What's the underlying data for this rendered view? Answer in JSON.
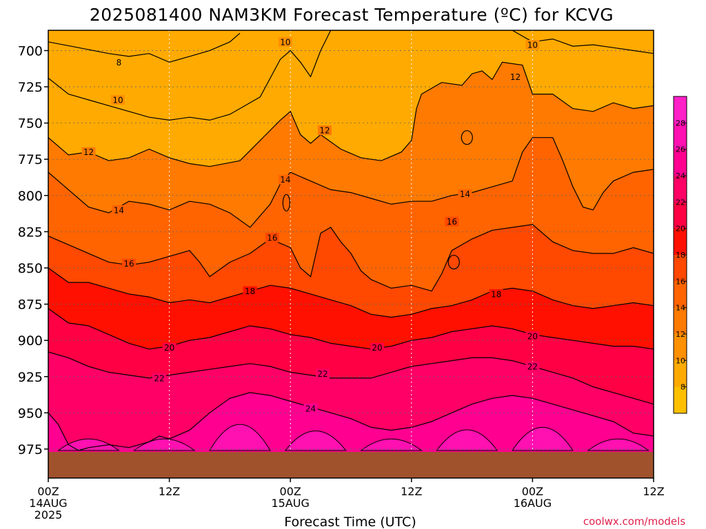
{
  "chart_data": {
    "type": "heatmap",
    "title": "2025081400 NAM3KM Forecast Temperature (ºC) for KCVG",
    "xlabel": "Forecast Time (UTC)",
    "ylabel": "",
    "credit": "coolwx.com/models",
    "x_ticks": [
      {
        "hour": 0,
        "lines": [
          "00Z",
          "14AUG",
          "2025"
        ]
      },
      {
        "hour": 12,
        "lines": [
          "12Z"
        ]
      },
      {
        "hour": 24,
        "lines": [
          "00Z",
          "15AUG"
        ]
      },
      {
        "hour": 36,
        "lines": [
          "12Z"
        ]
      },
      {
        "hour": 48,
        "lines": [
          "00Z",
          "16AUG"
        ]
      },
      {
        "hour": 60,
        "lines": [
          "12Z"
        ]
      }
    ],
    "xlim_hours": [
      0,
      60
    ],
    "y_ticks": [
      700,
      725,
      750,
      775,
      800,
      825,
      850,
      875,
      900,
      925,
      950,
      975
    ],
    "ylim_hpa": [
      686,
      995
    ],
    "ground_level_hpa": 977,
    "colorbar_ticks": [
      8,
      10,
      12,
      14,
      16,
      18,
      20,
      22,
      24,
      26,
      28
    ],
    "colorbar_levels": [
      {
        "min": 6,
        "color": "#ffc000"
      },
      {
        "min": 8,
        "color": "#ffaa00"
      },
      {
        "min": 10,
        "color": "#ff9000"
      },
      {
        "min": 12,
        "color": "#ff7a00"
      },
      {
        "min": 14,
        "color": "#ff6400"
      },
      {
        "min": 16,
        "color": "#ff4800"
      },
      {
        "min": 18,
        "color": "#ff1000"
      },
      {
        "min": 20,
        "color": "#ff0044"
      },
      {
        "min": 22,
        "color": "#ff0066"
      },
      {
        "min": 24,
        "color": "#ff0090"
      },
      {
        "min": 26,
        "color": "#ff10b0"
      },
      {
        "min": 28,
        "color": "#ff20c8"
      }
    ],
    "isotherms": [
      {
        "value": 8,
        "pressure_by_hour": [
          [
            0,
            694
          ],
          [
            3,
            698
          ],
          [
            6,
            702
          ],
          [
            8,
            704
          ],
          [
            10,
            702
          ],
          [
            12,
            708
          ],
          [
            14,
            704
          ],
          [
            16,
            700
          ],
          [
            18,
            694
          ],
          [
            19,
            688
          ]
        ]
      },
      {
        "value": 10,
        "pressure_by_hour": [
          [
            0,
            719
          ],
          [
            2,
            730
          ],
          [
            4,
            734
          ],
          [
            6,
            738
          ],
          [
            8,
            742
          ],
          [
            10,
            746
          ],
          [
            12,
            748
          ],
          [
            14,
            746
          ],
          [
            16,
            748
          ],
          [
            18,
            744
          ],
          [
            21,
            732
          ],
          [
            23,
            706
          ],
          [
            24,
            700
          ],
          [
            25,
            708
          ],
          [
            26,
            718
          ],
          [
            27,
            700
          ],
          [
            28,
            686
          ]
        ]
      },
      {
        "value": 10,
        "pressure_by_hour": [
          [
            46,
            686
          ],
          [
            48,
            694
          ],
          [
            50,
            692
          ],
          [
            52,
            697
          ],
          [
            54,
            696
          ],
          [
            56,
            698
          ],
          [
            58,
            700
          ],
          [
            60,
            702
          ]
        ]
      },
      {
        "value": 12,
        "pressure_by_hour": [
          [
            0,
            760
          ],
          [
            2,
            772
          ],
          [
            4,
            770
          ],
          [
            6,
            776
          ],
          [
            8,
            774
          ],
          [
            10,
            768
          ],
          [
            12,
            774
          ],
          [
            14,
            778
          ],
          [
            16,
            780
          ],
          [
            19,
            776
          ],
          [
            21,
            762
          ],
          [
            23,
            748
          ],
          [
            24,
            742
          ],
          [
            25,
            758
          ],
          [
            26,
            764
          ],
          [
            27,
            758
          ],
          [
            29,
            768
          ],
          [
            31,
            774
          ],
          [
            33,
            776
          ],
          [
            35,
            770
          ],
          [
            36,
            762
          ],
          [
            36.5,
            740
          ],
          [
            37,
            730
          ],
          [
            39,
            722
          ],
          [
            41,
            724
          ],
          [
            42,
            716
          ],
          [
            43,
            714
          ],
          [
            44,
            720
          ],
          [
            45,
            708
          ],
          [
            47,
            710
          ],
          [
            48,
            730
          ],
          [
            50,
            730
          ],
          [
            52,
            740
          ],
          [
            54,
            742
          ],
          [
            56,
            736
          ],
          [
            58,
            740
          ],
          [
            60,
            738
          ]
        ]
      },
      {
        "value": 14,
        "pressure_by_hour": [
          [
            0,
            784
          ],
          [
            2,
            796
          ],
          [
            4,
            808
          ],
          [
            6,
            812
          ],
          [
            8,
            804
          ],
          [
            10,
            806
          ],
          [
            12,
            810
          ],
          [
            14,
            804
          ],
          [
            16,
            806
          ],
          [
            18,
            812
          ],
          [
            20,
            822
          ],
          [
            22,
            806
          ],
          [
            23,
            792
          ],
          [
            24,
            784
          ],
          [
            26,
            790
          ],
          [
            28,
            796
          ],
          [
            30,
            798
          ],
          [
            32,
            802
          ],
          [
            34,
            806
          ],
          [
            36,
            804
          ],
          [
            38,
            804
          ],
          [
            40,
            800
          ],
          [
            42,
            798
          ],
          [
            44,
            794
          ],
          [
            46,
            790
          ],
          [
            47,
            770
          ],
          [
            48,
            760
          ],
          [
            50,
            760
          ],
          [
            51,
            776
          ],
          [
            52,
            794
          ],
          [
            53,
            808
          ],
          [
            54,
            810
          ],
          [
            55,
            798
          ],
          [
            56,
            790
          ],
          [
            58,
            784
          ],
          [
            60,
            782
          ]
        ]
      },
      {
        "value": 16,
        "pressure_by_hour": [
          [
            0,
            828
          ],
          [
            2,
            834
          ],
          [
            4,
            840
          ],
          [
            6,
            846
          ],
          [
            8,
            848
          ],
          [
            10,
            846
          ],
          [
            12,
            842
          ],
          [
            14,
            838
          ],
          [
            15,
            846
          ],
          [
            16,
            856
          ],
          [
            18,
            846
          ],
          [
            20,
            840
          ],
          [
            22,
            830
          ],
          [
            24,
            836
          ],
          [
            25,
            850
          ],
          [
            26,
            856
          ],
          [
            27,
            826
          ],
          [
            28,
            822
          ],
          [
            29,
            832
          ],
          [
            30,
            840
          ],
          [
            31,
            852
          ],
          [
            32,
            858
          ],
          [
            34,
            864
          ],
          [
            36,
            862
          ],
          [
            38,
            866
          ],
          [
            39,
            854
          ],
          [
            40,
            838
          ],
          [
            42,
            830
          ],
          [
            44,
            824
          ],
          [
            46,
            822
          ],
          [
            48,
            820
          ],
          [
            50,
            832
          ],
          [
            52,
            838
          ],
          [
            54,
            840
          ],
          [
            56,
            840
          ],
          [
            58,
            836
          ],
          [
            60,
            840
          ]
        ]
      },
      {
        "value": 18,
        "pressure_by_hour": [
          [
            0,
            850
          ],
          [
            2,
            860
          ],
          [
            4,
            860
          ],
          [
            6,
            864
          ],
          [
            8,
            868
          ],
          [
            10,
            870
          ],
          [
            12,
            874
          ],
          [
            14,
            872
          ],
          [
            16,
            874
          ],
          [
            18,
            870
          ],
          [
            20,
            866
          ],
          [
            22,
            862
          ],
          [
            24,
            864
          ],
          [
            26,
            868
          ],
          [
            28,
            872
          ],
          [
            30,
            876
          ],
          [
            32,
            882
          ],
          [
            34,
            884
          ],
          [
            36,
            882
          ],
          [
            38,
            878
          ],
          [
            40,
            876
          ],
          [
            42,
            872
          ],
          [
            44,
            866
          ],
          [
            46,
            864
          ],
          [
            48,
            866
          ],
          [
            50,
            872
          ],
          [
            52,
            876
          ],
          [
            54,
            878
          ],
          [
            56,
            876
          ],
          [
            58,
            874
          ],
          [
            60,
            876
          ]
        ]
      },
      {
        "value": 20,
        "pressure_by_hour": [
          [
            0,
            878
          ],
          [
            2,
            888
          ],
          [
            4,
            890
          ],
          [
            6,
            896
          ],
          [
            8,
            902
          ],
          [
            10,
            906
          ],
          [
            12,
            904
          ],
          [
            14,
            900
          ],
          [
            16,
            898
          ],
          [
            18,
            894
          ],
          [
            20,
            890
          ],
          [
            22,
            892
          ],
          [
            24,
            896
          ],
          [
            26,
            898
          ],
          [
            28,
            902
          ],
          [
            30,
            904
          ],
          [
            32,
            906
          ],
          [
            34,
            904
          ],
          [
            36,
            900
          ],
          [
            38,
            898
          ],
          [
            40,
            894
          ],
          [
            42,
            892
          ],
          [
            44,
            890
          ],
          [
            46,
            892
          ],
          [
            48,
            896
          ],
          [
            50,
            898
          ],
          [
            52,
            900
          ],
          [
            54,
            902
          ],
          [
            56,
            904
          ],
          [
            58,
            904
          ],
          [
            60,
            906
          ]
        ]
      },
      {
        "value": 22,
        "pressure_by_hour": [
          [
            0,
            908
          ],
          [
            2,
            912
          ],
          [
            4,
            918
          ],
          [
            6,
            922
          ],
          [
            8,
            924
          ],
          [
            10,
            926
          ],
          [
            12,
            924
          ],
          [
            14,
            922
          ],
          [
            16,
            920
          ],
          [
            18,
            918
          ],
          [
            20,
            916
          ],
          [
            22,
            918
          ],
          [
            24,
            922
          ],
          [
            26,
            924
          ],
          [
            28,
            926
          ],
          [
            30,
            926
          ],
          [
            32,
            926
          ],
          [
            34,
            922
          ],
          [
            36,
            918
          ],
          [
            38,
            916
          ],
          [
            40,
            914
          ],
          [
            42,
            912
          ],
          [
            44,
            912
          ],
          [
            46,
            914
          ],
          [
            48,
            918
          ],
          [
            50,
            922
          ],
          [
            52,
            926
          ],
          [
            54,
            932
          ],
          [
            56,
            936
          ],
          [
            58,
            940
          ],
          [
            60,
            944
          ]
        ]
      },
      {
        "value": 24,
        "pressure_by_hour": [
          [
            0,
            950
          ],
          [
            1,
            958
          ],
          [
            2,
            972
          ],
          [
            3,
            976
          ],
          [
            4,
            974
          ],
          [
            6,
            972
          ],
          [
            8,
            974
          ],
          [
            10,
            970
          ],
          [
            11,
            966
          ],
          [
            12,
            968
          ],
          [
            14,
            962
          ],
          [
            16,
            950
          ],
          [
            18,
            940
          ],
          [
            20,
            936
          ],
          [
            22,
            938
          ],
          [
            24,
            942
          ],
          [
            26,
            946
          ],
          [
            28,
            950
          ],
          [
            30,
            954
          ],
          [
            32,
            960
          ],
          [
            34,
            962
          ],
          [
            36,
            960
          ],
          [
            38,
            956
          ],
          [
            40,
            950
          ],
          [
            42,
            944
          ],
          [
            44,
            940
          ],
          [
            46,
            938
          ],
          [
            48,
            940
          ],
          [
            50,
            944
          ],
          [
            52,
            948
          ],
          [
            54,
            952
          ],
          [
            56,
            956
          ],
          [
            58,
            964
          ],
          [
            60,
            966
          ]
        ]
      }
    ],
    "contour_labels": [
      {
        "value": 8,
        "hour": 7,
        "hpa": 708
      },
      {
        "value": 10,
        "hour": 6.9,
        "hpa": 734
      },
      {
        "value": 10,
        "hour": 23.5,
        "hpa": 694
      },
      {
        "value": 10,
        "hour": 48,
        "hpa": 696
      },
      {
        "value": 12,
        "hour": 4,
        "hpa": 770
      },
      {
        "value": 12,
        "hour": 27.4,
        "hpa": 755
      },
      {
        "value": 12,
        "hour": 46.3,
        "hpa": 718
      },
      {
        "value": 14,
        "hour": 7,
        "hpa": 810
      },
      {
        "value": 14,
        "hour": 23.5,
        "hpa": 789
      },
      {
        "value": 14,
        "hour": 41.3,
        "hpa": 799
      },
      {
        "value": 16,
        "hour": 8,
        "hpa": 847
      },
      {
        "value": 16,
        "hour": 22.2,
        "hpa": 829
      },
      {
        "value": 16,
        "hour": 40,
        "hpa": 818
      },
      {
        "value": 18,
        "hour": 20,
        "hpa": 866
      },
      {
        "value": 18,
        "hour": 44.4,
        "hpa": 868
      },
      {
        "value": 20,
        "hour": 12,
        "hpa": 905
      },
      {
        "value": 20,
        "hour": 32.6,
        "hpa": 905
      },
      {
        "value": 20,
        "hour": 48,
        "hpa": 897
      },
      {
        "value": 22,
        "hour": 11,
        "hpa": 926
      },
      {
        "value": 22,
        "hour": 27.2,
        "hpa": 923
      },
      {
        "value": 22,
        "hour": 48,
        "hpa": 918
      },
      {
        "value": 24,
        "hour": 26,
        "hpa": 947
      }
    ]
  }
}
